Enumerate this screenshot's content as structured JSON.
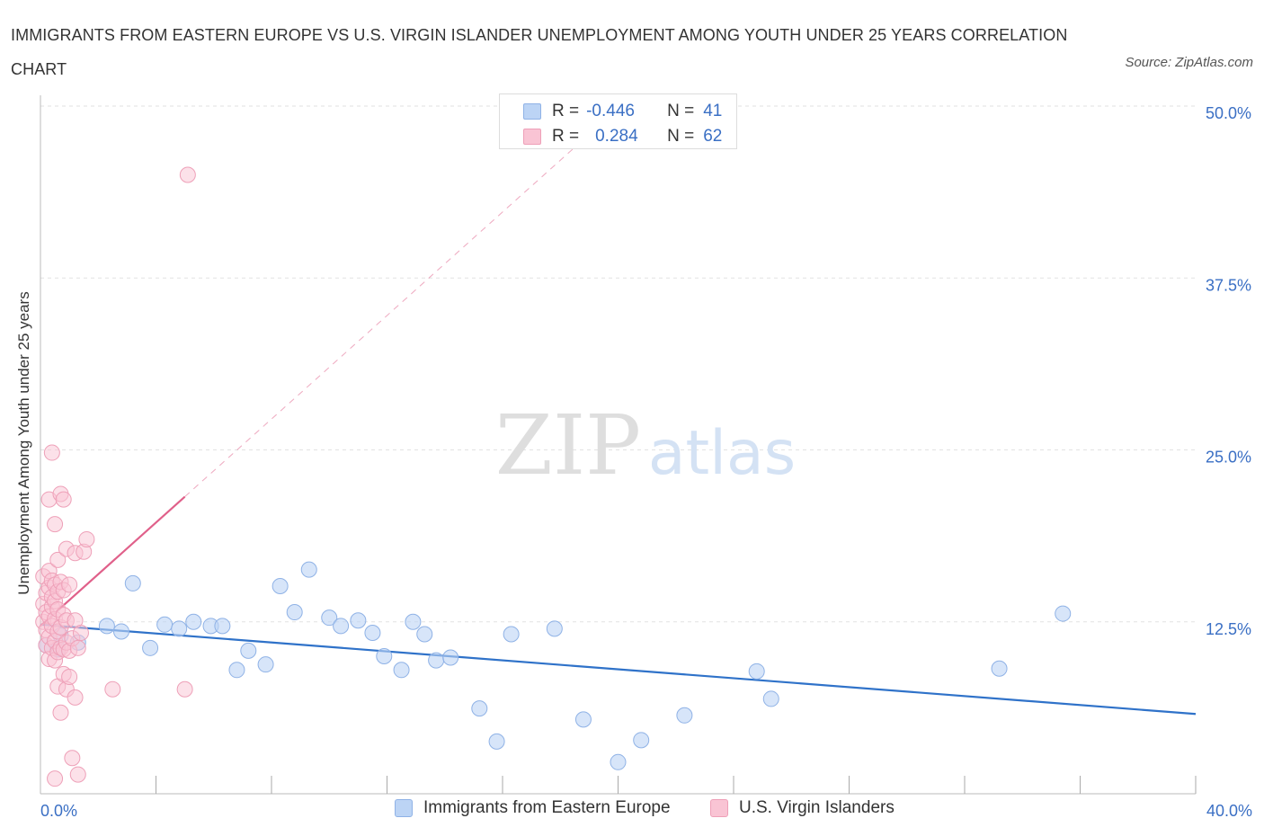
{
  "title": "IMMIGRANTS FROM EASTERN EUROPE VS U.S. VIRGIN ISLANDER UNEMPLOYMENT AMONG YOUTH UNDER 25 YEARS CORRELATION CHART",
  "source": "Source: ZipAtlas.com",
  "watermark": {
    "zip": "ZIP",
    "atlas": "atlas"
  },
  "legend": {
    "rows": [
      {
        "r_label": "R =",
        "r_value": "-0.446",
        "n_label": "N =",
        "n_value": "41"
      },
      {
        "r_label": "R =",
        "r_value": "0.284",
        "n_label": "N =",
        "n_value": "62"
      }
    ]
  },
  "colors": {
    "blue_fill": "#bcd4f5",
    "blue_stroke": "#8fb2e6",
    "blue_line": "#2f72c9",
    "pink_fill": "#f9c4d4",
    "pink_stroke": "#eea0b8",
    "pink_line": "#e0608a",
    "tick_label": "#3a6fc4",
    "grid": "#e2e2e2"
  },
  "chart_data": {
    "type": "scatter",
    "title": "IMMIGRANTS FROM EASTERN EUROPE VS U.S. VIRGIN ISLANDER UNEMPLOYMENT AMONG YOUTH UNDER 25 YEARS CORRELATION CHART",
    "xlabel": "",
    "ylabel": "Unemployment Among Youth under 25 years",
    "xlim": [
      0,
      40
    ],
    "ylim": [
      0,
      50
    ],
    "x_tick_labels": [
      {
        "value": 0,
        "label": "0.0%"
      },
      {
        "value": 40,
        "label": "40.0%"
      }
    ],
    "x_minor_ticks": [
      4,
      8,
      12,
      16,
      20,
      24,
      28,
      32,
      36,
      40
    ],
    "y_ticks": [
      {
        "value": 12.5,
        "label": "12.5%"
      },
      {
        "value": 25,
        "label": "25.0%"
      },
      {
        "value": 37.5,
        "label": "37.5%"
      },
      {
        "value": 50,
        "label": "50.0%"
      }
    ],
    "series": [
      {
        "name": "Immigrants from Eastern Europe",
        "color": "#bcd4f5",
        "points": [
          [
            0.2,
            10.8
          ],
          [
            0.6,
            10.5
          ],
          [
            0.7,
            11.5
          ],
          [
            1.3,
            11.0
          ],
          [
            2.3,
            12.2
          ],
          [
            2.8,
            11.8
          ],
          [
            3.2,
            15.3
          ],
          [
            3.8,
            10.6
          ],
          [
            4.3,
            12.3
          ],
          [
            4.8,
            12.0
          ],
          [
            5.3,
            12.5
          ],
          [
            5.9,
            12.2
          ],
          [
            6.3,
            12.2
          ],
          [
            6.8,
            9.0
          ],
          [
            7.2,
            10.4
          ],
          [
            7.8,
            9.4
          ],
          [
            8.3,
            15.1
          ],
          [
            8.8,
            13.2
          ],
          [
            9.3,
            16.3
          ],
          [
            10.0,
            12.8
          ],
          [
            10.4,
            12.2
          ],
          [
            11.0,
            12.6
          ],
          [
            11.5,
            11.7
          ],
          [
            11.9,
            10.0
          ],
          [
            12.5,
            9.0
          ],
          [
            12.9,
            12.5
          ],
          [
            13.3,
            11.6
          ],
          [
            13.7,
            9.7
          ],
          [
            14.2,
            9.9
          ],
          [
            15.2,
            6.2
          ],
          [
            15.8,
            3.8
          ],
          [
            16.3,
            11.6
          ],
          [
            17.8,
            12.0
          ],
          [
            18.8,
            5.4
          ],
          [
            20.0,
            2.3
          ],
          [
            20.8,
            3.9
          ],
          [
            22.3,
            5.7
          ],
          [
            24.8,
            8.9
          ],
          [
            25.3,
            6.9
          ],
          [
            33.2,
            9.1
          ],
          [
            35.4,
            13.1
          ]
        ]
      },
      {
        "name": "U.S. Virgin Islanders",
        "color": "#f9c4d4",
        "points": [
          [
            0.1,
            12.5
          ],
          [
            0.1,
            13.8
          ],
          [
            0.1,
            15.8
          ],
          [
            0.2,
            10.8
          ],
          [
            0.2,
            11.9
          ],
          [
            0.2,
            13.2
          ],
          [
            0.2,
            14.6
          ],
          [
            0.3,
            9.8
          ],
          [
            0.3,
            11.4
          ],
          [
            0.3,
            12.9
          ],
          [
            0.3,
            15.0
          ],
          [
            0.3,
            16.2
          ],
          [
            0.3,
            21.4
          ],
          [
            0.4,
            10.6
          ],
          [
            0.4,
            12.2
          ],
          [
            0.4,
            13.6
          ],
          [
            0.4,
            14.3
          ],
          [
            0.4,
            15.5
          ],
          [
            0.4,
            24.8
          ],
          [
            0.5,
            9.7
          ],
          [
            0.5,
            11.1
          ],
          [
            0.5,
            12.7
          ],
          [
            0.5,
            14.0
          ],
          [
            0.5,
            15.2
          ],
          [
            0.5,
            19.6
          ],
          [
            0.6,
            7.8
          ],
          [
            0.6,
            10.3
          ],
          [
            0.6,
            11.8
          ],
          [
            0.6,
            13.4
          ],
          [
            0.6,
            14.7
          ],
          [
            0.6,
            17.0
          ],
          [
            0.7,
            5.9
          ],
          [
            0.7,
            10.6
          ],
          [
            0.7,
            12.1
          ],
          [
            0.7,
            15.4
          ],
          [
            0.7,
            21.8
          ],
          [
            0.8,
            8.7
          ],
          [
            0.8,
            10.5
          ],
          [
            0.8,
            13.0
          ],
          [
            0.8,
            14.8
          ],
          [
            0.8,
            21.4
          ],
          [
            0.9,
            7.6
          ],
          [
            0.9,
            11.0
          ],
          [
            0.9,
            12.6
          ],
          [
            0.9,
            17.8
          ],
          [
            1.0,
            8.5
          ],
          [
            1.0,
            10.4
          ],
          [
            1.0,
            15.2
          ],
          [
            1.1,
            2.6
          ],
          [
            1.1,
            11.3
          ],
          [
            1.2,
            7.0
          ],
          [
            1.2,
            12.6
          ],
          [
            1.2,
            17.5
          ],
          [
            1.3,
            1.4
          ],
          [
            1.3,
            10.6
          ],
          [
            1.4,
            11.7
          ],
          [
            1.5,
            17.6
          ],
          [
            1.6,
            18.5
          ],
          [
            2.5,
            7.6
          ],
          [
            5.0,
            7.6
          ],
          [
            5.1,
            45.0
          ],
          [
            0.5,
            1.1
          ]
        ]
      }
    ],
    "trendlines": [
      {
        "series": "Immigrants from Eastern Europe",
        "x": [
          0,
          40
        ],
        "y": [
          12.3,
          5.8
        ],
        "style": "solid"
      },
      {
        "series": "U.S. Virgin Islanders",
        "x": [
          0,
          5.0
        ],
        "y": [
          12.2,
          21.6
        ],
        "style": "solid"
      },
      {
        "series": "U.S. Virgin Islanders",
        "x": [
          5.0,
          18.5
        ],
        "y": [
          21.6,
          47.0
        ],
        "style": "dashed"
      }
    ],
    "legend": [
      "Immigrants from Eastern Europe",
      "U.S. Virgin Islanders"
    ],
    "legend_position": "bottom"
  }
}
